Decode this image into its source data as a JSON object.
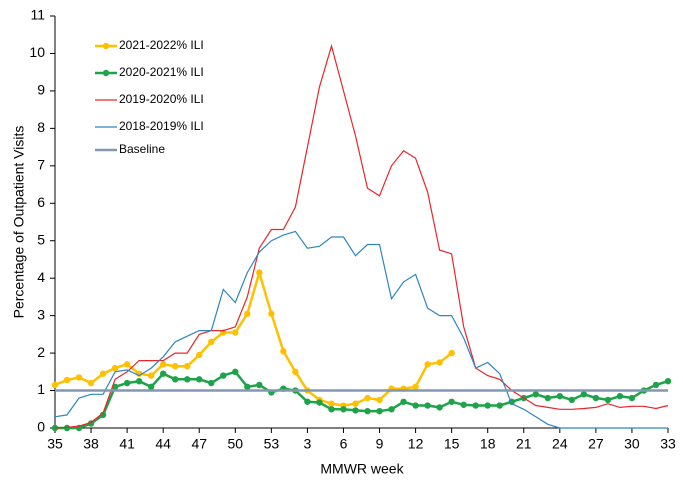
{
  "chart_data": {
    "type": "line",
    "y_label": "Percentage of Outpatient Visits",
    "x_label": "MMWR week",
    "categories": [
      35,
      null,
      null,
      38,
      null,
      null,
      41,
      null,
      null,
      44,
      null,
      null,
      47,
      null,
      null,
      50,
      null,
      null,
      53,
      null,
      null,
      3,
      null,
      null,
      6,
      null,
      null,
      9,
      null,
      null,
      12,
      null,
      null,
      15,
      null,
      null,
      18,
      null,
      null,
      21,
      null,
      null,
      24,
      null,
      null,
      27,
      null,
      null,
      30,
      null,
      null,
      33
    ],
    "ylim": [
      0,
      11
    ],
    "yticks": [
      0,
      1,
      2,
      3,
      4,
      5,
      6,
      7,
      8,
      9,
      10,
      11
    ],
    "legend": "upper left",
    "series": [
      {
        "name": "2021-2022% ILI",
        "color": "#ffc000",
        "markers": true,
        "values": [
          1.15,
          1.28,
          1.35,
          1.2,
          1.45,
          1.6,
          1.7,
          1.45,
          1.4,
          1.7,
          1.65,
          1.65,
          1.95,
          2.3,
          2.55,
          2.55,
          3.05,
          4.15,
          3.05,
          2.05,
          1.5,
          1.0,
          0.75,
          0.65,
          0.6,
          0.65,
          0.8,
          0.75,
          1.05,
          1.05,
          1.1,
          1.7,
          1.75,
          2.0,
          null,
          null,
          null,
          null,
          null,
          null,
          null,
          null,
          null,
          null,
          null,
          null,
          null,
          null,
          null,
          null,
          null,
          null
        ]
      },
      {
        "name": "2020-2021% ILI",
        "color": "#1fa34a",
        "markers": true,
        "values": [
          0,
          0,
          0,
          0.12,
          0.35,
          1.1,
          1.2,
          1.25,
          1.1,
          1.45,
          1.3,
          1.3,
          1.3,
          1.2,
          1.4,
          1.5,
          1.1,
          1.15,
          0.95,
          1.05,
          1.0,
          0.7,
          0.68,
          0.5,
          0.5,
          0.47,
          0.45,
          0.45,
          0.5,
          0.7,
          0.6,
          0.6,
          0.55,
          0.7,
          0.62,
          0.6,
          0.6,
          0.6,
          0.7,
          0.8,
          0.9,
          0.8,
          0.85,
          0.75,
          0.9,
          0.8,
          0.75,
          0.85,
          0.8,
          1.0,
          1.15,
          1.25
        ]
      },
      {
        "name": "2019-2020% ILI",
        "color": "#e8262a",
        "markers": false,
        "values": [
          0,
          0.02,
          0.05,
          0.15,
          0.4,
          1.3,
          1.5,
          1.8,
          1.8,
          1.8,
          2.0,
          2.0,
          2.5,
          2.6,
          2.6,
          2.7,
          3.5,
          4.8,
          5.3,
          5.3,
          5.9,
          7.5,
          9.1,
          10.2,
          9.0,
          7.8,
          6.4,
          6.2,
          7.0,
          7.4,
          7.2,
          6.3,
          4.75,
          4.65,
          2.7,
          1.6,
          1.4,
          1.3,
          1.0,
          0.8,
          0.6,
          0.55,
          0.5,
          0.5,
          0.52,
          0.55,
          0.65,
          0.55,
          0.58,
          0.58,
          0.52,
          0.6
        ]
      },
      {
        "name": "2018-2019% ILI",
        "color": "#2e86c1",
        "markers": false,
        "values": [
          0.3,
          0.35,
          0.8,
          0.9,
          0.9,
          1.5,
          1.55,
          1.4,
          1.6,
          1.9,
          2.3,
          2.45,
          2.6,
          2.6,
          3.7,
          3.35,
          4.15,
          4.7,
          5.0,
          5.15,
          5.25,
          4.8,
          4.85,
          5.1,
          5.1,
          4.6,
          4.9,
          4.9,
          3.45,
          3.9,
          4.1,
          3.2,
          3.0,
          3.0,
          2.4,
          1.6,
          1.75,
          1.45,
          0.65,
          0.5,
          0.3,
          0.1,
          0,
          0,
          0,
          0,
          0,
          0,
          0,
          0,
          0,
          0
        ]
      },
      {
        "name": "Baseline",
        "color": "#8497b0",
        "value": 1
      }
    ]
  }
}
